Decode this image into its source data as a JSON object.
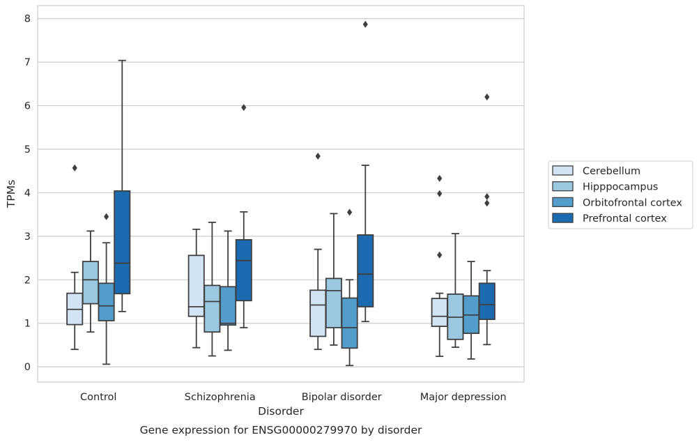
{
  "chart_data": {
    "type": "box",
    "caption": "Gene expression for ENSG00000279970 by disorder",
    "xlabel": "Disorder",
    "ylabel": "TPMs",
    "ylim": [
      -0.35,
      8.3
    ],
    "yticks": [
      0,
      1,
      2,
      3,
      4,
      5,
      6,
      7,
      8
    ],
    "grid": "horizontal",
    "legend_position": "right",
    "categories": [
      "Control",
      "Schizophrenia",
      "Bipolar disorder",
      "Major depression"
    ],
    "series": [
      {
        "name": "Cerebellum",
        "color": "#d2e3f3",
        "boxes": [
          {
            "whisker_low": 0.4,
            "q1": 0.97,
            "median": 1.32,
            "q3": 1.69,
            "whisker_high": 2.17,
            "outliers": [
              4.57
            ]
          },
          {
            "whisker_low": 0.44,
            "q1": 1.16,
            "median": 1.38,
            "q3": 2.56,
            "whisker_high": 3.16,
            "outliers": []
          },
          {
            "whisker_low": 0.4,
            "q1": 0.7,
            "median": 1.42,
            "q3": 1.76,
            "whisker_high": 2.7,
            "outliers": [
              4.84
            ]
          },
          {
            "whisker_low": 0.24,
            "q1": 0.93,
            "median": 1.16,
            "q3": 1.57,
            "whisker_high": 1.69,
            "outliers": [
              2.57,
              3.98,
              4.33
            ]
          }
        ]
      },
      {
        "name": "Hipppocampus",
        "color": "#9ac8e0",
        "boxes": [
          {
            "whisker_low": 0.8,
            "q1": 1.45,
            "median": 2.0,
            "q3": 2.42,
            "whisker_high": 3.12,
            "outliers": []
          },
          {
            "whisker_low": 0.25,
            "q1": 0.8,
            "median": 1.5,
            "q3": 1.87,
            "whisker_high": 3.32,
            "outliers": []
          },
          {
            "whisker_low": 0.5,
            "q1": 0.9,
            "median": 1.75,
            "q3": 2.03,
            "whisker_high": 3.52,
            "outliers": []
          },
          {
            "whisker_low": 0.45,
            "q1": 0.63,
            "median": 1.14,
            "q3": 1.67,
            "whisker_high": 3.06,
            "outliers": []
          }
        ]
      },
      {
        "name": "Orbitofrontal cortex",
        "color": "#529dcc",
        "boxes": [
          {
            "whisker_low": 0.06,
            "q1": 1.06,
            "median": 1.4,
            "q3": 1.92,
            "whisker_high": 2.85,
            "outliers": [
              3.45
            ]
          },
          {
            "whisker_low": 0.38,
            "q1": 0.96,
            "median": 1.0,
            "q3": 1.84,
            "whisker_high": 3.12,
            "outliers": []
          },
          {
            "whisker_low": 0.03,
            "q1": 0.43,
            "median": 0.9,
            "q3": 1.58,
            "whisker_high": 2.0,
            "outliers": [
              3.55
            ]
          },
          {
            "whisker_low": 0.18,
            "q1": 0.77,
            "median": 1.19,
            "q3": 1.63,
            "whisker_high": 2.42,
            "outliers": []
          }
        ]
      },
      {
        "name": "Prefrontal cortex",
        "color": "#1c6aaf",
        "boxes": [
          {
            "whisker_low": 1.27,
            "q1": 1.68,
            "median": 2.38,
            "q3": 4.04,
            "whisker_high": 7.04,
            "outliers": []
          },
          {
            "whisker_low": 0.9,
            "q1": 1.52,
            "median": 2.44,
            "q3": 2.92,
            "whisker_high": 3.56,
            "outliers": [
              5.96
            ]
          },
          {
            "whisker_low": 1.04,
            "q1": 1.38,
            "median": 2.13,
            "q3": 3.03,
            "whisker_high": 4.63,
            "outliers": [
              7.87
            ]
          },
          {
            "whisker_low": 0.51,
            "q1": 1.09,
            "median": 1.43,
            "q3": 1.92,
            "whisker_high": 2.21,
            "outliers": [
              3.76,
              3.91,
              6.2
            ]
          }
        ]
      }
    ]
  }
}
